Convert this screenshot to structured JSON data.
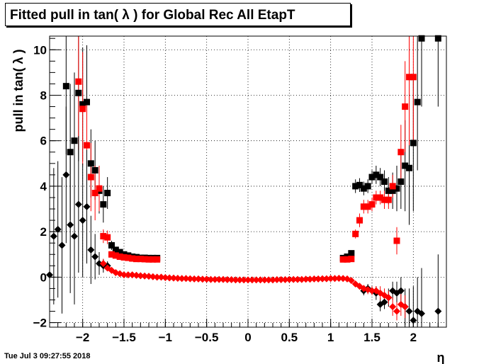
{
  "chart_data": {
    "type": "scatter",
    "title": "Fitted pull in tan( λ ) for Global Rec All EtapT",
    "xlabel": "η",
    "ylabel": "pull in tan( λ )",
    "xlim": [
      -2.4,
      2.4
    ],
    "ylim": [
      -2.2,
      10.6
    ],
    "xticks": [
      "−2",
      "−1.5",
      "−1",
      "−0.5",
      "0",
      "0.5",
      "1",
      "1.5",
      "2"
    ],
    "yticks": [
      "−2",
      "0",
      "2",
      "4",
      "6",
      "8",
      "10"
    ],
    "grid": true,
    "timestamp": "Tue Jul  3 09:27:55 2018",
    "series": [
      {
        "marker": "square",
        "color": "#000000",
        "x": [
          -2.2,
          -2.15,
          -2.1,
          -2.05,
          -2.0,
          -1.95,
          -1.9,
          -1.85,
          -1.8,
          -1.75,
          -1.7,
          -1.65,
          -1.6,
          -1.55,
          -1.5,
          -1.45,
          -1.4,
          -1.35,
          -1.3,
          -1.25,
          -1.2,
          -1.15,
          -1.1,
          1.15,
          1.2,
          1.25,
          1.3,
          1.35,
          1.4,
          1.45,
          1.5,
          1.55,
          1.6,
          1.65,
          1.7,
          1.75,
          1.8,
          1.85,
          1.9,
          1.95,
          2.0,
          2.05,
          2.1,
          2.3
        ],
        "y": [
          8.4,
          5.5,
          6.0,
          8.1,
          7.6,
          7.7,
          5.0,
          4.7,
          3.8,
          3.2,
          3.7,
          1.4,
          1.2,
          1.1,
          1.0,
          0.95,
          0.9,
          0.88,
          0.85,
          0.85,
          0.84,
          0.84,
          0.84,
          0.84,
          0.9,
          1.05,
          4.0,
          4.05,
          3.9,
          4.0,
          4.4,
          4.5,
          4.4,
          4.2,
          3.8,
          3.8,
          3.9,
          4.2,
          4.9,
          4.8,
          5.9,
          7.7,
          10.5,
          10.5
        ],
        "err": [
          3,
          3,
          3,
          3,
          2.5,
          2.5,
          1.5,
          1.3,
          1,
          0.8,
          0.7,
          0.2,
          0.1,
          0.05,
          0.05,
          0.05,
          0.05,
          0.05,
          0.05,
          0.05,
          0.05,
          0.05,
          0.05,
          0.05,
          0.05,
          0.1,
          0.3,
          0.3,
          0.3,
          0.3,
          0.3,
          0.4,
          0.4,
          0.5,
          0.6,
          0.8,
          1,
          1.2,
          2,
          2.5,
          3,
          3,
          3,
          3
        ]
      },
      {
        "marker": "square",
        "color": "#ff0000",
        "x": [
          -2.05,
          -2.0,
          -1.95,
          -1.9,
          -1.85,
          -1.8,
          -1.75,
          -1.7,
          -1.65,
          -1.6,
          -1.55,
          -1.5,
          -1.45,
          -1.4,
          -1.35,
          -1.3,
          -1.25,
          -1.2,
          -1.15,
          -1.1,
          1.15,
          1.2,
          1.25,
          1.3,
          1.35,
          1.4,
          1.45,
          1.5,
          1.55,
          1.6,
          1.65,
          1.7,
          1.75,
          1.8,
          1.85,
          1.9,
          1.95,
          2.0
        ],
        "y": [
          8.6,
          7.4,
          5.8,
          4.4,
          3.7,
          3.9,
          1.8,
          1.75,
          1.0,
          0.95,
          0.9,
          0.87,
          0.85,
          0.82,
          0.8,
          0.8,
          0.79,
          0.78,
          0.78,
          0.78,
          0.78,
          0.78,
          0.8,
          1.9,
          2.5,
          3.1,
          3.1,
          3.2,
          3.5,
          3.5,
          3.4,
          3.4,
          4.0,
          1.6,
          5.5,
          7.5,
          8.8,
          8.8
        ],
        "err": [
          3,
          2.5,
          2,
          1.5,
          1.2,
          1,
          0.3,
          0.3,
          0.1,
          0.05,
          0.05,
          0.05,
          0.05,
          0.05,
          0.05,
          0.05,
          0.05,
          0.05,
          0.05,
          0.05,
          0.05,
          0.05,
          0.1,
          0.2,
          0.3,
          0.3,
          0.3,
          0.3,
          0.3,
          0.3,
          0.4,
          0.4,
          0.5,
          0.6,
          1.2,
          2,
          3,
          3
        ]
      },
      {
        "marker": "diamond",
        "color": "#000000",
        "x": [
          -2.4,
          -2.35,
          -2.3,
          -2.25,
          -2.2,
          -2.15,
          -2.1,
          -2.05,
          -2.0,
          -1.95,
          -1.9,
          -1.85,
          -1.8,
          -1.75,
          -1.7,
          1.4,
          1.45,
          1.5,
          1.55,
          1.6,
          1.65,
          1.7,
          1.75,
          1.8,
          1.85,
          1.9,
          1.95,
          2.0,
          2.05,
          2.1,
          2.3
        ],
        "y": [
          0.1,
          1.8,
          2.1,
          1.4,
          4.5,
          2.3,
          1.8,
          3.2,
          2.5,
          3.1,
          1.2,
          0.9,
          0.6,
          0.5,
          0.5,
          -0.6,
          -0.5,
          -0.6,
          -0.7,
          -1.2,
          -1.1,
          -0.9,
          -0.6,
          -0.7,
          -0.6,
          -1.3,
          -1.5,
          -1.9,
          -1.5,
          -1.6,
          -1.5
        ],
        "err": [
          3,
          3,
          3,
          3,
          3,
          3,
          3,
          3,
          2.5,
          2.5,
          1.5,
          1,
          0.5,
          0.3,
          0.2,
          0.2,
          0.2,
          0.2,
          0.3,
          0.3,
          0.3,
          0.4,
          0.4,
          0.5,
          0.6,
          0.8,
          1,
          1.5,
          1.5,
          2,
          2.5
        ]
      },
      {
        "marker": "diamond",
        "color": "#ff0000",
        "x": [
          -1.75,
          -1.7,
          -1.65,
          -1.6,
          -1.55,
          -1.5,
          -1.45,
          -1.4,
          -1.35,
          -1.3,
          -1.25,
          -1.2,
          -1.15,
          -1.1,
          -1.05,
          -1.0,
          -0.95,
          -0.9,
          -0.85,
          -0.8,
          -0.75,
          -0.7,
          -0.65,
          -0.6,
          -0.55,
          -0.5,
          -0.45,
          -0.4,
          -0.35,
          -0.3,
          -0.25,
          -0.2,
          -0.15,
          -0.1,
          -0.05,
          0.0,
          0.05,
          0.1,
          0.15,
          0.2,
          0.25,
          0.3,
          0.35,
          0.4,
          0.45,
          0.5,
          0.55,
          0.6,
          0.65,
          0.7,
          0.75,
          0.8,
          0.85,
          0.9,
          0.95,
          1.0,
          1.05,
          1.1,
          1.15,
          1.2,
          1.25,
          1.3,
          1.35,
          1.4,
          1.45,
          1.5,
          1.55,
          1.6,
          1.65,
          1.7,
          1.75,
          1.8,
          1.85,
          1.9
        ],
        "y": [
          0.6,
          0.4,
          0.3,
          0.2,
          0.15,
          0.1,
          0.1,
          0.1,
          0.08,
          0.06,
          0.05,
          0.04,
          0.02,
          0.0,
          0.0,
          -0.02,
          -0.03,
          -0.04,
          -0.05,
          -0.06,
          -0.06,
          -0.07,
          -0.08,
          -0.08,
          -0.09,
          -0.09,
          -0.1,
          -0.1,
          -0.1,
          -0.1,
          -0.11,
          -0.11,
          -0.12,
          -0.12,
          -0.12,
          -0.12,
          -0.12,
          -0.12,
          -0.12,
          -0.12,
          -0.12,
          -0.12,
          -0.11,
          -0.11,
          -0.11,
          -0.1,
          -0.1,
          -0.1,
          -0.1,
          -0.09,
          -0.09,
          -0.08,
          -0.08,
          -0.07,
          -0.07,
          -0.06,
          -0.06,
          -0.05,
          -0.06,
          -0.08,
          -0.15,
          -0.3,
          -0.4,
          -0.5,
          -0.55,
          -0.6,
          -0.6,
          -0.7,
          -0.8,
          -0.9,
          -1.3,
          -1.5,
          -1.2,
          -1.3
        ],
        "err": [
          0.2,
          0.1,
          0.05,
          0.05,
          0.05,
          0.05,
          0.05,
          0.05,
          0.05,
          0.05,
          0.05,
          0.05,
          0.05,
          0.05,
          0.05,
          0.05,
          0.05,
          0.05,
          0.05,
          0.05,
          0.05,
          0.05,
          0.05,
          0.05,
          0.05,
          0.05,
          0.05,
          0.05,
          0.05,
          0.05,
          0.05,
          0.05,
          0.05,
          0.05,
          0.05,
          0.05,
          0.05,
          0.05,
          0.05,
          0.05,
          0.05,
          0.05,
          0.05,
          0.05,
          0.05,
          0.05,
          0.05,
          0.05,
          0.05,
          0.05,
          0.05,
          0.05,
          0.05,
          0.05,
          0.05,
          0.05,
          0.05,
          0.05,
          0.05,
          0.05,
          0.1,
          0.1,
          0.15,
          0.15,
          0.2,
          0.2,
          0.2,
          0.3,
          0.3,
          0.3,
          0.4,
          0.4,
          0.5,
          0.5
        ]
      }
    ]
  }
}
